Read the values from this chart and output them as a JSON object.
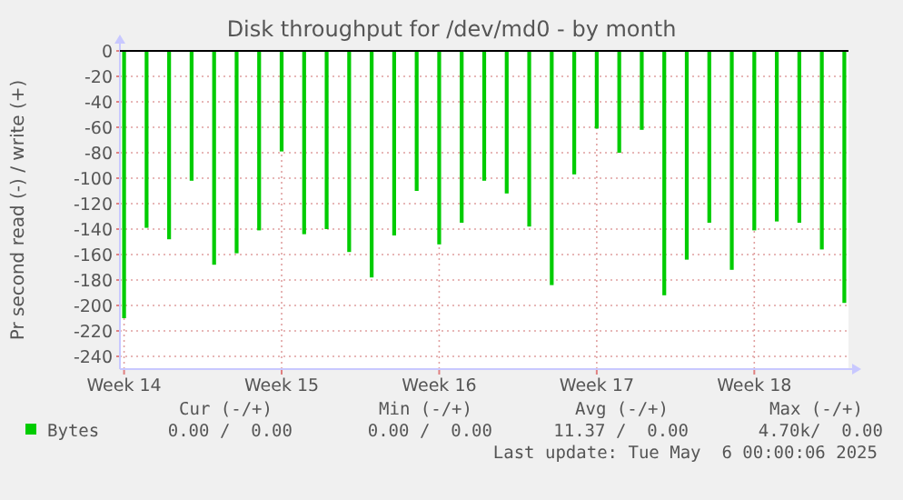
{
  "chart_data": {
    "type": "bar",
    "title": "Disk throughput for /dev/md0 - by month",
    "ylabel": "Pr second read (-) / write (+)",
    "categories": [
      "Week 14",
      null,
      null,
      null,
      null,
      null,
      null,
      "Week 15",
      null,
      null,
      null,
      null,
      null,
      null,
      "Week 16",
      null,
      null,
      null,
      null,
      null,
      null,
      "Week 17",
      null,
      null,
      null,
      null,
      null,
      null,
      "Week 18",
      null,
      null,
      null,
      null
    ],
    "series": [
      {
        "name": "Bytes",
        "color": "#00cc00",
        "values": [
          -210,
          -139,
          -148,
          -102,
          -168,
          -159,
          -141,
          -79,
          -144,
          -140,
          -158,
          -178,
          -145,
          -110,
          -152,
          -135,
          -102,
          -112,
          -138,
          -184,
          -97,
          -61,
          -80,
          -62,
          -192,
          -164,
          -135,
          -172,
          -141,
          -134,
          -135,
          -156,
          -198
        ]
      }
    ],
    "ylim": [
      -250,
      0
    ],
    "yticks": [
      0,
      -20,
      -40,
      -60,
      -80,
      -100,
      -120,
      -140,
      -160,
      -180,
      -200,
      -220,
      -240
    ],
    "grid": true,
    "legend": "bottom left",
    "annotations": [
      "Cur (-/+)",
      "Min (-/+)",
      "Avg (-/+)",
      "Max (-/+)",
      "0.00 /  0.00",
      "0.00 /  0.00",
      "11.37 /  0.00",
      "4.70k/  0.00",
      "Last update: Tue May  6 00:00:06 2025"
    ]
  }
}
